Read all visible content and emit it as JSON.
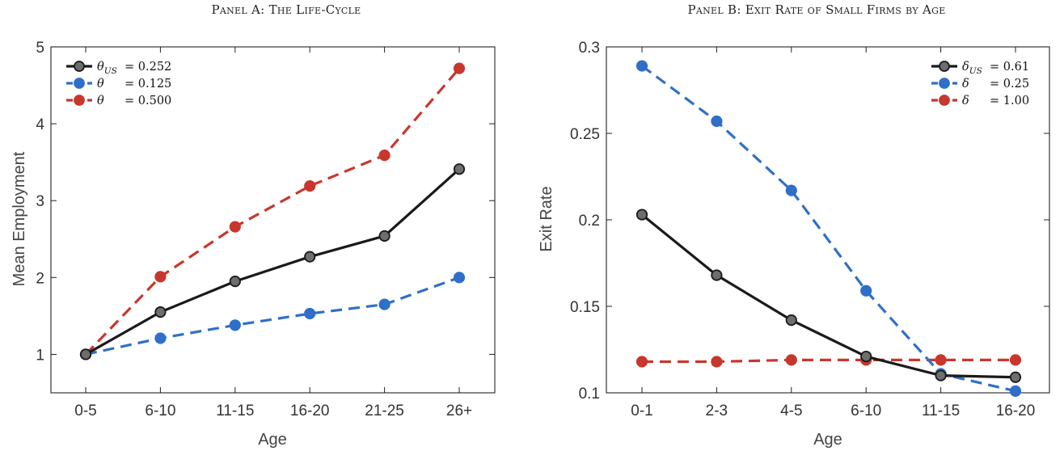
{
  "chart_data": [
    {
      "type": "line",
      "title": "Panel A: The Life-Cycle",
      "xlabel": "Age",
      "ylabel": "Mean Employment",
      "categories": [
        "0-5",
        "6-10",
        "11-15",
        "16-20",
        "21-25",
        "26+"
      ],
      "ylim": [
        0.5,
        5
      ],
      "yticks": [
        "1",
        "2",
        "3",
        "4",
        "5"
      ],
      "ytick_values": [
        1,
        2,
        3,
        4,
        5
      ],
      "legend_position": "top-left",
      "series": [
        {
          "name": "θUS = 0.252",
          "legend_sym": "θ",
          "legend_sub": "US",
          "legend_val": "= 0.252",
          "color": "#1a1a1a",
          "dash": "solid",
          "marker_fill": "#6e6e6e",
          "values": [
            1.0,
            1.55,
            1.95,
            2.27,
            2.54,
            3.41
          ]
        },
        {
          "name": "θ = 0.125",
          "legend_sym": "θ",
          "legend_sub": "",
          "legend_val": "= 0.125",
          "color": "#2f6fc9",
          "dash": "dashed",
          "marker_fill": "#2f6fc9",
          "values": [
            1.0,
            1.21,
            1.38,
            1.53,
            1.65,
            2.0
          ]
        },
        {
          "name": "θ = 0.500",
          "legend_sym": "θ",
          "legend_sub": "",
          "legend_val": "= 0.500",
          "color": "#c8372d",
          "dash": "dashed",
          "marker_fill": "#c8372d",
          "values": [
            1.0,
            2.01,
            2.66,
            3.19,
            3.59,
            4.72
          ]
        }
      ]
    },
    {
      "type": "line",
      "title": "Panel B: Exit Rate of Small Firms by Age",
      "xlabel": "Age",
      "ylabel": "Exit Rate",
      "categories": [
        "0-1",
        "2-3",
        "4-5",
        "6-10",
        "11-15",
        "16-20"
      ],
      "ylim": [
        0.1,
        0.3
      ],
      "yticks": [
        "0.1",
        "0.15",
        "0.2",
        "0.25",
        "0.3"
      ],
      "ytick_values": [
        0.1,
        0.15,
        0.2,
        0.25,
        0.3
      ],
      "legend_position": "top-right",
      "series": [
        {
          "name": "δUS = 0.61",
          "legend_sym": "δ",
          "legend_sub": "US",
          "legend_val": "= 0.61",
          "color": "#1a1a1a",
          "dash": "solid",
          "marker_fill": "#6e6e6e",
          "values": [
            0.203,
            0.168,
            0.142,
            0.121,
            0.11,
            0.109
          ]
        },
        {
          "name": "δ = 0.25",
          "legend_sym": "δ",
          "legend_sub": "",
          "legend_val": "= 0.25",
          "color": "#2f6fc9",
          "dash": "dashed",
          "marker_fill": "#2f6fc9",
          "values": [
            0.289,
            0.257,
            0.217,
            0.159,
            0.111,
            0.101
          ]
        },
        {
          "name": "δ = 1.00",
          "legend_sym": "δ",
          "legend_sub": "",
          "legend_val": "= 1.00",
          "color": "#c8372d",
          "dash": "dashed",
          "marker_fill": "#c8372d",
          "values": [
            0.118,
            0.118,
            0.119,
            0.119,
            0.119,
            0.119
          ]
        }
      ]
    }
  ]
}
